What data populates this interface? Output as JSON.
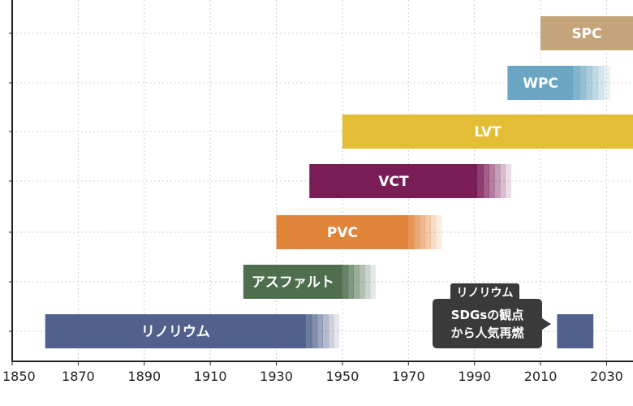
{
  "chart_data": {
    "type": "gantt-timeline",
    "title": "",
    "xlabel": "",
    "ylabel": "",
    "xlim": [
      1850,
      2038
    ],
    "ticks": [
      1850,
      1870,
      1890,
      1910,
      1930,
      1950,
      1970,
      1990,
      2010,
      2030
    ],
    "grid": true,
    "bars": [
      {
        "label": "SPC",
        "start": 2010,
        "solid_end": 2038,
        "fade_end": 2038,
        "color": "#c4a47a"
      },
      {
        "label": "WPC",
        "start": 2000,
        "solid_end": 2020,
        "fade_end": 2031,
        "color": "#6aa6c4"
      },
      {
        "label": "LVT",
        "start": 1950,
        "solid_end": 2038,
        "fade_end": 2038,
        "color": "#e3bd35"
      },
      {
        "label": "VCT",
        "start": 1940,
        "solid_end": 1991,
        "fade_end": 2001,
        "color": "#7a1d57"
      },
      {
        "label": "PVC",
        "start": 1930,
        "solid_end": 1970,
        "fade_end": 1980,
        "color": "#e0843a"
      },
      {
        "label": "アスファルト",
        "start": 1920,
        "solid_end": 1950,
        "fade_end": 1960,
        "color": "#4e6e4e"
      },
      {
        "label": "リノリウム",
        "start": 1860,
        "solid_end": 1939,
        "fade_end": 1949,
        "color": "#51608c"
      }
    ],
    "revival": {
      "label": "リノリウム",
      "text_line1": "SDGsの観点",
      "text_line2": "から人気再燃",
      "start": 2015,
      "end": 2026,
      "color": "#51608c",
      "callout_color": "#3a3a3a"
    }
  }
}
